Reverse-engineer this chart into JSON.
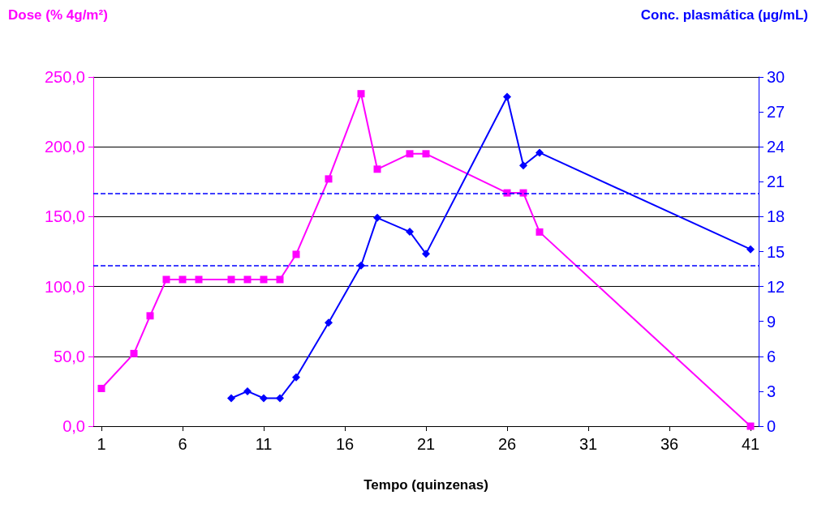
{
  "chart_data": {
    "type": "line",
    "xlabel": "Tempo (quinzenas)",
    "ylabel": "Dose (% 4g/m²)",
    "y2label": "Conc. plasmática (µg/mL)",
    "xlim": [
      0.5,
      41.5
    ],
    "xticks": [
      1,
      6,
      11,
      16,
      21,
      26,
      31,
      36,
      41
    ],
    "ylim": [
      0,
      250
    ],
    "yticks": [
      {
        "value": 0,
        "label": "0,0"
      },
      {
        "value": 50,
        "label": "50,0"
      },
      {
        "value": 100,
        "label": "100,0"
      },
      {
        "value": 150,
        "label": "150,0"
      },
      {
        "value": 200,
        "label": "200,0"
      },
      {
        "value": 250,
        "label": "250,0"
      }
    ],
    "y2lim": [
      0,
      30
    ],
    "y2ticks": [
      0,
      3,
      6,
      9,
      12,
      15,
      18,
      21,
      24,
      27,
      30
    ],
    "grid": "y",
    "series": [
      {
        "color": "#ff00ff",
        "marker": "square",
        "x": [
          1,
          3,
          4,
          5,
          6,
          7,
          9,
          10,
          11,
          12,
          13,
          15,
          17,
          18,
          20,
          21,
          26,
          27,
          28,
          41
        ],
        "values": [
          27,
          52,
          79,
          105,
          105,
          105,
          105,
          105,
          105,
          105,
          123,
          177,
          238,
          184,
          195,
          195,
          167,
          167,
          139,
          0
        ]
      },
      {
        "color": "#0000ff",
        "marker": "diamond",
        "axis": "y2",
        "x": [
          9,
          10,
          11,
          12,
          13,
          15,
          17,
          18,
          20,
          21,
          26,
          27,
          28,
          41
        ],
        "values": [
          2.4,
          3.0,
          2.4,
          2.4,
          4.2,
          8.9,
          13.8,
          17.9,
          16.7,
          14.8,
          28.3,
          22.4,
          23.5,
          15.2
        ]
      }
    ],
    "ref_lines": [
      {
        "axis": "y2",
        "value": 20,
        "color": "#0000ff",
        "line_style": "dashed"
      },
      {
        "axis": "y2",
        "value": 13.8,
        "color": "#0000ff",
        "line_style": "dashed"
      }
    ]
  }
}
